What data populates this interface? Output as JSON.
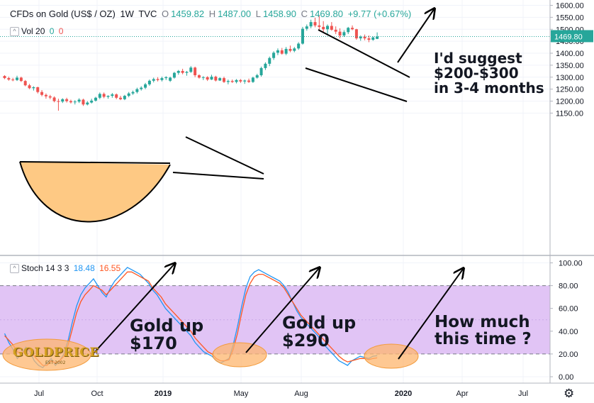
{
  "header": {
    "symbol": "CFDs on Gold (US$ / OZ)",
    "interval": "1W",
    "exchange": "TVC",
    "o_label": "O",
    "o_value": "1459.82",
    "h_label": "H",
    "h_value": "1487.00",
    "l_label": "L",
    "l_value": "1458.90",
    "c_label": "C",
    "c_value": "1469.80",
    "change": "+9.77 (+0.67%)"
  },
  "volume": {
    "label": "Vol 20",
    "v1": "0",
    "v2": "0"
  },
  "stoch_header": {
    "label": "Stoch 14 3 3",
    "k": "18.48",
    "d": "16.55"
  },
  "annotations": {
    "suggest_line1": "I'd suggest",
    "suggest_line2": "$200-$300",
    "suggest_line3": "in 3-4 months",
    "up1_line1": "Gold up",
    "up1_line2": "$170",
    "up2_line1": "Gold up",
    "up2_line2": "$290",
    "howmuch_line1": "How much",
    "howmuch_line2": "this time ?",
    "logo": "GOLDPRICE",
    "logo_sub": "EST 2002"
  },
  "colors": {
    "up": "#26a69a",
    "down": "#ef5350",
    "k_line": "#2196f3",
    "d_line": "#ff5722",
    "band": "#e1c4f5",
    "cup": "#fec984",
    "last_price": "#26a69a"
  },
  "chart_data": [
    {
      "type": "candlestick",
      "title": "",
      "y_ticks": [
        "1150.00",
        "1200.00",
        "1250.00",
        "1300.00",
        "1350.00",
        "1400.00",
        "1450.00",
        "1500.00",
        "1550.00",
        "1600.00"
      ],
      "ylim": [
        1125,
        1612
      ],
      "x_ticks": [
        "Jul",
        "Oct",
        "2019",
        "May",
        "Aug",
        "2020",
        "Apr",
        "Jul"
      ],
      "last_price": "1469.80",
      "candles": [
        [
          1305,
          1308,
          1292,
          1296
        ],
        [
          1296,
          1302,
          1285,
          1290
        ],
        [
          1290,
          1297,
          1283,
          1288
        ],
        [
          1288,
          1306,
          1284,
          1298
        ],
        [
          1298,
          1302,
          1280,
          1284
        ],
        [
          1284,
          1288,
          1262,
          1266
        ],
        [
          1266,
          1272,
          1250,
          1254
        ],
        [
          1254,
          1262,
          1244,
          1258
        ],
        [
          1258,
          1260,
          1232,
          1238
        ],
        [
          1238,
          1246,
          1220,
          1226
        ],
        [
          1226,
          1232,
          1210,
          1220
        ],
        [
          1220,
          1226,
          1208,
          1215
        ],
        [
          1215,
          1220,
          1195,
          1200
        ],
        [
          1200,
          1210,
          1160,
          1198
        ],
        [
          1198,
          1212,
          1192,
          1208
        ],
        [
          1208,
          1214,
          1194,
          1200
        ],
        [
          1200,
          1206,
          1190,
          1195
        ],
        [
          1195,
          1204,
          1186,
          1198
        ],
        [
          1198,
          1212,
          1192,
          1206
        ],
        [
          1206,
          1210,
          1180,
          1186
        ],
        [
          1186,
          1200,
          1182,
          1194
        ],
        [
          1194,
          1210,
          1190,
          1202
        ],
        [
          1202,
          1218,
          1198,
          1214
        ],
        [
          1214,
          1236,
          1208,
          1230
        ],
        [
          1230,
          1236,
          1212,
          1218
        ],
        [
          1218,
          1224,
          1210,
          1222
        ],
        [
          1222,
          1234,
          1214,
          1228
        ],
        [
          1228,
          1232,
          1208,
          1214
        ],
        [
          1214,
          1222,
          1204,
          1208
        ],
        [
          1208,
          1226,
          1204,
          1222
        ],
        [
          1222,
          1238,
          1216,
          1232
        ],
        [
          1232,
          1244,
          1226,
          1238
        ],
        [
          1238,
          1256,
          1232,
          1250
        ],
        [
          1250,
          1262,
          1244,
          1256
        ],
        [
          1256,
          1276,
          1250,
          1270
        ],
        [
          1270,
          1290,
          1264,
          1285
        ],
        [
          1285,
          1298,
          1278,
          1292
        ],
        [
          1292,
          1300,
          1282,
          1288
        ],
        [
          1288,
          1302,
          1282,
          1296
        ],
        [
          1296,
          1304,
          1288,
          1300
        ],
        [
          1285,
          1302,
          1280,
          1298
        ],
        [
          1298,
          1322,
          1294,
          1318
        ],
        [
          1318,
          1330,
          1310,
          1326
        ],
        [
          1326,
          1335,
          1312,
          1318
        ],
        [
          1318,
          1326,
          1306,
          1322
        ],
        [
          1322,
          1346,
          1318,
          1340
        ],
        [
          1340,
          1344,
          1300,
          1308
        ],
        [
          1308,
          1312,
          1294,
          1298
        ],
        [
          1298,
          1304,
          1288,
          1300
        ],
        [
          1300,
          1304,
          1284,
          1290
        ],
        [
          1290,
          1310,
          1288,
          1302
        ],
        [
          1302,
          1306,
          1282,
          1286
        ],
        [
          1286,
          1300,
          1284,
          1296
        ],
        [
          1296,
          1302,
          1276,
          1280
        ],
        [
          1280,
          1290,
          1270,
          1284
        ],
        [
          1284,
          1290,
          1276,
          1280
        ],
        [
          1280,
          1292,
          1274,
          1288
        ],
        [
          1288,
          1292,
          1276,
          1282
        ],
        [
          1282,
          1290,
          1272,
          1286
        ],
        [
          1286,
          1294,
          1276,
          1280
        ],
        [
          1280,
          1302,
          1276,
          1298
        ],
        [
          1298,
          1314,
          1294,
          1308
        ],
        [
          1308,
          1344,
          1302,
          1338
        ],
        [
          1338,
          1362,
          1330,
          1356
        ],
        [
          1356,
          1386,
          1346,
          1380
        ],
        [
          1380,
          1408,
          1372,
          1402
        ],
        [
          1402,
          1420,
          1392,
          1412
        ],
        [
          1412,
          1422,
          1394,
          1398
        ],
        [
          1398,
          1426,
          1392,
          1418
        ],
        [
          1418,
          1432,
          1404,
          1410
        ],
        [
          1410,
          1426,
          1404,
          1420
        ],
        [
          1420,
          1446,
          1414,
          1440
        ],
        [
          1440,
          1510,
          1436,
          1502
        ],
        [
          1502,
          1520,
          1494,
          1512
        ],
        [
          1512,
          1540,
          1504,
          1530
        ],
        [
          1530,
          1548,
          1508,
          1516
        ],
        [
          1516,
          1556,
          1496,
          1510
        ],
        [
          1510,
          1534,
          1488,
          1500
        ],
        [
          1500,
          1520,
          1480,
          1514
        ],
        [
          1514,
          1530,
          1494,
          1498
        ],
        [
          1498,
          1512,
          1480,
          1490
        ],
        [
          1490,
          1504,
          1462,
          1474
        ],
        [
          1474,
          1496,
          1468,
          1488
        ],
        [
          1488,
          1510,
          1480,
          1506
        ],
        [
          1506,
          1516,
          1496,
          1500
        ],
        [
          1500,
          1502,
          1456,
          1462
        ],
        [
          1462,
          1474,
          1452,
          1468
        ],
        [
          1468,
          1478,
          1454,
          1462
        ],
        [
          1462,
          1474,
          1446,
          1456
        ],
        [
          1456,
          1470,
          1452,
          1466
        ],
        [
          1459.82,
          1487,
          1458.9,
          1469.8
        ]
      ]
    },
    {
      "type": "line",
      "title": "",
      "y_ticks": [
        "0.00",
        "20.00",
        "40.00",
        "60.00",
        "80.00",
        "100.00"
      ],
      "ylim": [
        -5,
        105
      ],
      "band": [
        20,
        80
      ],
      "series": [
        {
          "key": "k",
          "color": "#2196f3",
          "values": [
            38,
            30,
            24,
            16,
            20,
            26,
            22,
            14,
            10,
            8,
            12,
            16,
            10,
            14,
            20,
            32,
            48,
            62,
            72,
            78,
            82,
            86,
            80,
            74,
            70,
            78,
            84,
            88,
            92,
            96,
            94,
            92,
            90,
            86,
            82,
            76,
            72,
            66,
            60,
            56,
            52,
            48,
            44,
            40,
            36,
            30,
            26,
            22,
            20,
            18,
            14,
            12,
            14,
            16,
            28,
            44,
            62,
            78,
            88,
            92,
            94,
            92,
            90,
            88,
            86,
            84,
            80,
            74,
            66,
            58,
            52,
            48,
            44,
            40,
            36,
            30,
            26,
            22,
            18,
            14,
            12,
            10,
            14,
            16,
            18,
            17,
            16,
            18,
            18.48
          ]
        },
        {
          "key": "d",
          "color": "#ff5722",
          "values": [
            36,
            32,
            28,
            22,
            20,
            24,
            24,
            18,
            14,
            10,
            10,
            14,
            12,
            14,
            18,
            28,
            42,
            56,
            66,
            72,
            76,
            80,
            78,
            76,
            72,
            76,
            80,
            84,
            88,
            92,
            92,
            90,
            88,
            86,
            84,
            78,
            74,
            70,
            64,
            60,
            56,
            52,
            48,
            44,
            40,
            34,
            30,
            26,
            22,
            20,
            16,
            14,
            14,
            15,
            24,
            38,
            56,
            72,
            82,
            88,
            90,
            90,
            88,
            86,
            84,
            82,
            78,
            72,
            66,
            60,
            54,
            50,
            46,
            42,
            38,
            34,
            30,
            26,
            22,
            18,
            15,
            13,
            14,
            15,
            16,
            16,
            15,
            16,
            16.55
          ]
        }
      ]
    }
  ]
}
